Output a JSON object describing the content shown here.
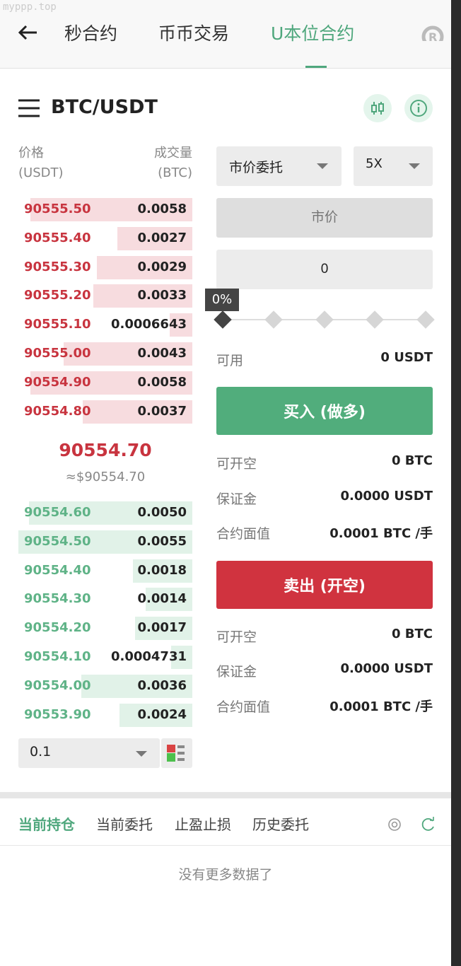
{
  "watermark": "myppp.top",
  "nav": {
    "tabs": [
      {
        "label": "秒合约"
      },
      {
        "label": "币币交易"
      },
      {
        "label": "U本位合约",
        "active": true
      }
    ]
  },
  "pair": "BTC/USDT",
  "orderbook": {
    "price_label": "价格",
    "price_unit": "(USDT)",
    "qty_label": "成交量",
    "qty_unit": "(BTC)",
    "asks": [
      {
        "price": "90555.50",
        "qty": "0.0058",
        "depth": 0.93
      },
      {
        "price": "90555.40",
        "qty": "0.0027",
        "depth": 0.43
      },
      {
        "price": "90555.30",
        "qty": "0.0029",
        "depth": 0.55
      },
      {
        "price": "90555.20",
        "qty": "0.0033",
        "depth": 0.57
      },
      {
        "price": "90555.10",
        "qty": "0.0006643",
        "depth": 0.13
      },
      {
        "price": "90555.00",
        "qty": "0.0043",
        "depth": 0.74
      },
      {
        "price": "90554.90",
        "qty": "0.0058",
        "depth": 0.93
      },
      {
        "price": "90554.80",
        "qty": "0.0037",
        "depth": 0.63
      }
    ],
    "last_price": "90554.70",
    "last_price_usd": "≈$90554.70",
    "bids": [
      {
        "price": "90554.60",
        "qty": "0.0050",
        "depth": 0.94
      },
      {
        "price": "90554.50",
        "qty": "0.0055",
        "depth": 1.0
      },
      {
        "price": "90554.40",
        "qty": "0.0018",
        "depth": 0.34
      },
      {
        "price": "90554.30",
        "qty": "0.0014",
        "depth": 0.27
      },
      {
        "price": "90554.20",
        "qty": "0.0017",
        "depth": 0.33
      },
      {
        "price": "90554.10",
        "qty": "0.0004731",
        "depth": 0.12
      },
      {
        "price": "90554.00",
        "qty": "0.0036",
        "depth": 0.64
      },
      {
        "price": "90553.90",
        "qty": "0.0024",
        "depth": 0.42
      }
    ],
    "precision": "0.1"
  },
  "order": {
    "type": "市价委托",
    "leverage": "5X",
    "price_placeholder": "市价",
    "amount": "0",
    "percent_label": "0%",
    "percent": 0,
    "available_label": "可用",
    "available": "0 USDT",
    "buy_label": "买入 (做多)",
    "sell_label": "卖出 (开空)",
    "buy_info": [
      {
        "k": "可开空",
        "v": "0 BTC"
      },
      {
        "k": "保证金",
        "v": "0.0000 USDT"
      },
      {
        "k": "合约面值",
        "v": "0.0001 BTC /手"
      }
    ],
    "sell_info": [
      {
        "k": "可开空",
        "v": "0 BTC"
      },
      {
        "k": "保证金",
        "v": "0.0000 USDT"
      },
      {
        "k": "合约面值",
        "v": "0.0001 BTC /手"
      }
    ]
  },
  "bottom": {
    "tabs": [
      {
        "label": "当前持仓",
        "active": true
      },
      {
        "label": "当前委托"
      },
      {
        "label": "止盈止损"
      },
      {
        "label": "历史委托"
      }
    ],
    "empty": "没有更多数据了"
  },
  "colors": {
    "green": "#4fa77d",
    "red": "#d0333f",
    "ask": "#c8343f",
    "bid": "#5fb387"
  }
}
